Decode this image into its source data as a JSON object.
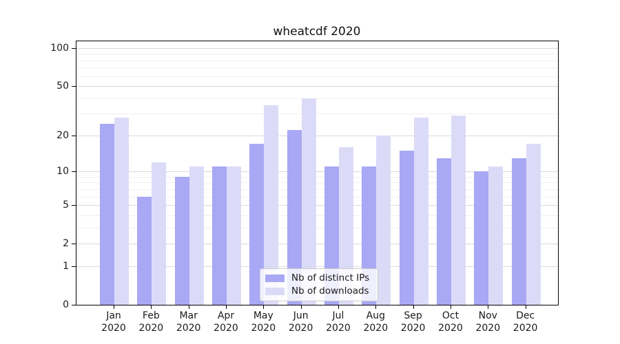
{
  "chart_data": {
    "type": "bar",
    "title": "wheatcdf 2020",
    "categories": [
      "Jan",
      "Feb",
      "Mar",
      "Apr",
      "May",
      "Jun",
      "Jul",
      "Aug",
      "Sep",
      "Oct",
      "Nov",
      "Dec"
    ],
    "year_label": "2020",
    "series": [
      {
        "name": "Nb of distinct IPs",
        "color": "#a8a8f5",
        "values": [
          25,
          6,
          9,
          11,
          17,
          22,
          11,
          11,
          15,
          13,
          10,
          13
        ]
      },
      {
        "name": "Nb of downloads",
        "color": "#dbdbf8",
        "values": [
          28,
          12,
          11,
          11,
          35,
          40,
          16,
          20,
          28,
          29,
          11,
          17
        ]
      }
    ],
    "xlabel": "",
    "ylabel": "",
    "yscale": "log1p",
    "yticks_major": [
      0,
      1,
      2,
      5,
      10,
      20,
      50,
      100
    ],
    "yticks_minor": [
      3,
      4,
      6,
      7,
      8,
      9,
      30,
      40,
      60,
      70,
      80,
      90
    ],
    "ylim": [
      0,
      113
    ],
    "grid": true,
    "legend_position": "lower center",
    "colors": {
      "spine": "#000000",
      "grid_major": "#d9d9d9",
      "grid_minor": "#f0f0f0",
      "text": "#1a1a1a"
    }
  }
}
